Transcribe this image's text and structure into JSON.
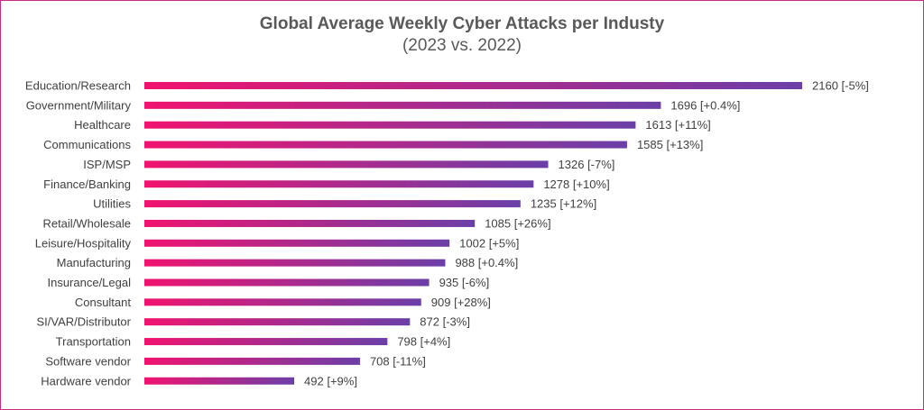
{
  "chart_data": {
    "type": "bar",
    "orientation": "horizontal",
    "title": "Global Average Weekly Cyber Attacks per Industy",
    "subtitle": "(2023 vs. 2022)",
    "categories": [
      "Education/Research",
      "Government/Military",
      "Healthcare",
      "Communications",
      "ISP/MSP",
      "Finance/Banking",
      "Utilities",
      "Retail/Wholesale",
      "Leisure/Hospitality",
      "Manufacturing",
      "Insurance/Legal",
      "Consultant",
      "SI/VAR/Distributor",
      "Transportation",
      "Software vendor",
      "Hardware vendor"
    ],
    "values": [
      2160,
      1696,
      1613,
      1585,
      1326,
      1278,
      1235,
      1085,
      1002,
      988,
      935,
      909,
      872,
      798,
      708,
      492
    ],
    "data_labels": [
      "2160 [-5%]",
      "1696 [+0.4%]",
      "1613 [+11%]",
      "1585 [+13%]",
      "1326 [-7%]",
      "1278 [+10%]",
      "1235 [+12%]",
      "1085 [+26%]",
      "1002 [+5%]",
      "988 [+0.4%]",
      "935 [-6%]",
      "909 [+28%]",
      "872 [-3%]",
      "798 [+4%]",
      "708 [-11%]",
      "492 [+9%]"
    ],
    "xlim": [
      0,
      2160
    ],
    "grid": false,
    "legend": "none",
    "colors": {
      "gradient_start": "#f0136f",
      "gradient_end": "#6b3fa8",
      "border": "#c72c8a",
      "text": "#404040",
      "title": "#595959"
    }
  }
}
